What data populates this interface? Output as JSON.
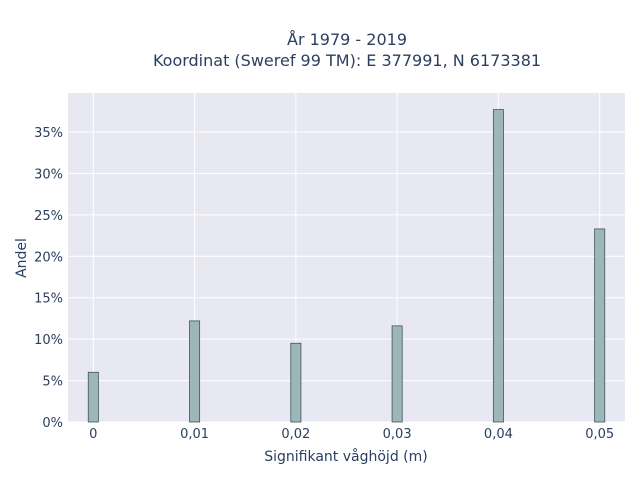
{
  "chart_data": {
    "type": "bar",
    "title_line1": "År 1979 - 2019",
    "title_line2": "Koordinat (Sweref 99 TM): E 377991, N 6173381",
    "xlabel": "Signifikant våghöjd (m)",
    "ylabel": "Andel",
    "categories": [
      0,
      0.01,
      0.02,
      0.03,
      0.04,
      0.05
    ],
    "x_tick_labels": [
      "0",
      "0,01",
      "0,02",
      "0,03",
      "0,04",
      "0,05"
    ],
    "values": [
      6.0,
      12.2,
      9.5,
      11.6,
      37.7,
      23.3
    ],
    "y_ticks": [
      0,
      5,
      10,
      15,
      20,
      25,
      30,
      35
    ],
    "y_tick_labels": [
      "0%",
      "5%",
      "10%",
      "15%",
      "20%",
      "25%",
      "30%",
      "35%"
    ],
    "xlim": [
      -0.0025,
      0.0525
    ],
    "ylim": [
      0,
      39.7
    ],
    "bar_width": 0.001,
    "grid": true,
    "colors": {
      "bar_fill": "#9db6b7",
      "bar_stroke": "#3f5556",
      "plot_bg": "#e8e8f2",
      "grid": "#ffffff"
    }
  }
}
